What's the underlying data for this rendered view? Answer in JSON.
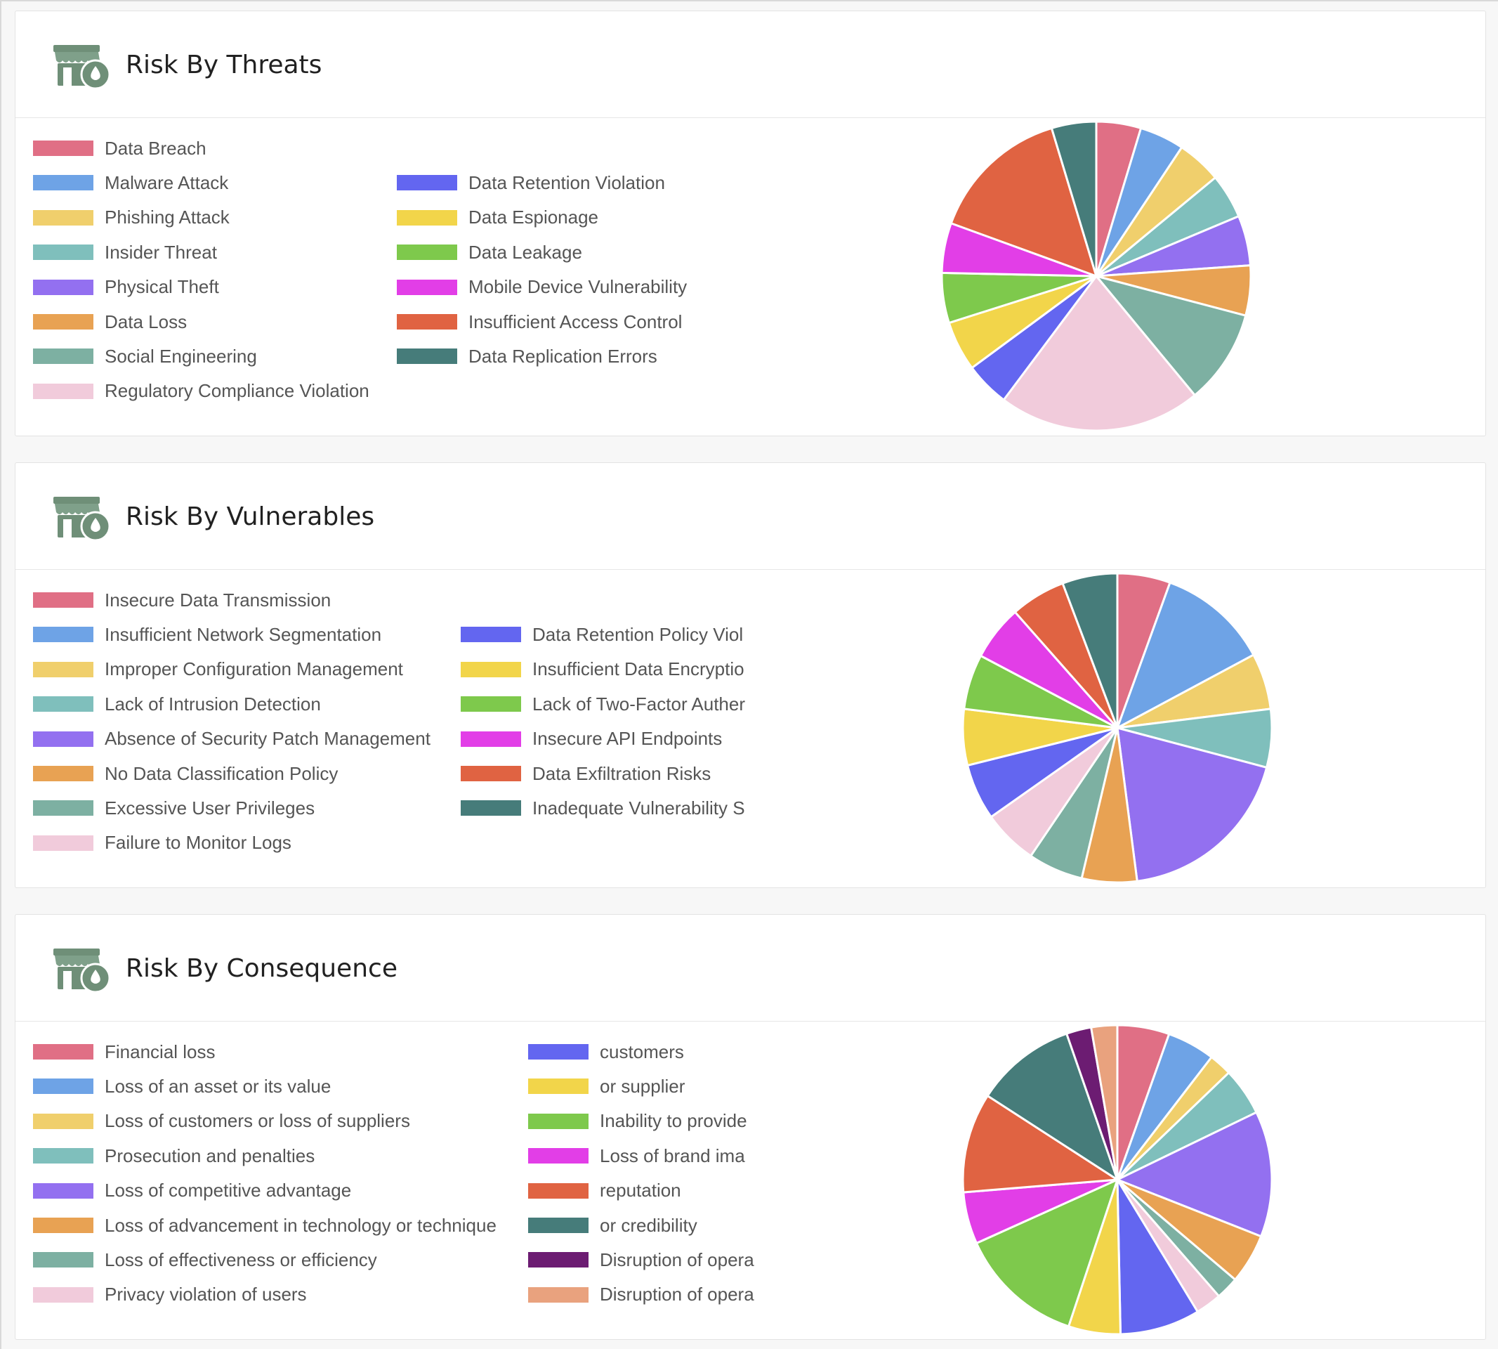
{
  "palette": [
    "#e06f85",
    "#6ea3e6",
    "#f0cf6c",
    "#7fbfbc",
    "#9370f0",
    "#e8a253",
    "#7db0a2",
    "#f1cbdb",
    "#6366f0",
    "#f2d54a",
    "#7ec94c",
    "#e23ee7",
    "#e06342",
    "#467c7a",
    "#6c1c72",
    "#e9a27e"
  ],
  "icon": "store-fire-icon",
  "sections": [
    {
      "title": "Risk By Threats",
      "col2_clip": null,
      "legend": {
        "col1": [
          "Data Breach",
          "Malware Attack",
          "Phishing Attack",
          "Insider Threat",
          "Physical Theft",
          "Data Loss",
          "Social Engineering",
          "Regulatory Compliance Violation"
        ],
        "col2": [
          "Data Retention Violation",
          "Data Espionage",
          "Data Leakage",
          "Mobile Device Vulnerability",
          "Insufficient Access Control",
          "Data Replication Errors"
        ]
      },
      "chart_data": {
        "type": "pie",
        "labels": [
          "Data Breach",
          "Malware Attack",
          "Phishing Attack",
          "Insider Threat",
          "Physical Theft",
          "Data Loss",
          "Social Engineering",
          "Regulatory Compliance Violation",
          "Data Retention Violation",
          "Data Espionage",
          "Data Leakage",
          "Mobile Device Vulnerability",
          "Insufficient Access Control",
          "Data Replication Errors"
        ],
        "values": [
          4.2,
          4.2,
          4.2,
          4.2,
          4.7,
          4.7,
          8.9,
          19.1,
          4.2,
          4.7,
          4.7,
          4.7,
          13.3,
          4.2
        ],
        "colors": [
          "#e06f85",
          "#6ea3e6",
          "#f0cf6c",
          "#7fbfbc",
          "#9370f0",
          "#e8a253",
          "#7db0a2",
          "#f1cbdb",
          "#6366f0",
          "#f2d54a",
          "#7ec94c",
          "#e23ee7",
          "#e06342",
          "#467c7a"
        ]
      }
    },
    {
      "title": "Risk By Vulnerables",
      "col2_clip": "narrow",
      "legend": {
        "col1": [
          "Insecure Data Transmission",
          "Insufficient Network Segmentation",
          "Improper Configuration Management",
          "Lack of Intrusion Detection",
          "Absence of Security Patch Management",
          "No Data Classification Policy",
          "Excessive User Privileges",
          "Failure to Monitor Logs"
        ],
        "col2": [
          "Data Retention Policy Viol",
          "Insufficient Data Encryptio",
          "Lack of Two-Factor Auther",
          "Insecure API Endpoints",
          "Data Exfiltration Risks",
          "Inadequate Vulnerability S"
        ]
      },
      "chart_data": {
        "type": "pie",
        "labels": [
          "Insecure Data Transmission",
          "Insufficient Network Segmentation",
          "Improper Configuration Management",
          "Lack of Intrusion Detection",
          "Absence of Security Patch Management",
          "No Data Classification Policy",
          "Excessive User Privileges",
          "Failure to Monitor Logs",
          "Data Retention Policy Viol",
          "Insufficient Data Encryptio",
          "Lack of Two-Factor Auther",
          "Insecure API Endpoints",
          "Data Exfiltration Risks",
          "Inadequate Vulnerability S"
        ],
        "values": [
          5.0,
          10.5,
          5.3,
          5.5,
          17.0,
          5.2,
          5.2,
          5.2,
          5.3,
          5.3,
          5.2,
          5.2,
          5.2,
          5.2
        ],
        "colors": [
          "#e06f85",
          "#6ea3e6",
          "#f0cf6c",
          "#7fbfbc",
          "#9370f0",
          "#e8a253",
          "#7db0a2",
          "#f1cbdb",
          "#6366f0",
          "#f2d54a",
          "#7ec94c",
          "#e23ee7",
          "#e06342",
          "#467c7a"
        ]
      }
    },
    {
      "title": "Risk By Consequence",
      "col2_clip": "narrow",
      "legend": {
        "col1": [
          "Financial loss",
          "Loss of an asset or its value",
          "Loss of customers or loss of suppliers",
          "Prosecution and penalties",
          "Loss of competitive advantage",
          "Loss of advancement in technology or technique",
          "Loss of effectiveness or efficiency",
          "Privacy violation of users"
        ],
        "col2": [
          " customers",
          " or supplier",
          "Inability to provide",
          "Loss of brand ima",
          " reputation",
          " or credibility",
          "Disruption of opera",
          "Disruption of opera"
        ]
      },
      "chart_data": {
        "type": "pie",
        "labels": [
          "Financial loss",
          "Loss of an asset or its value",
          "Loss of customers or loss of suppliers",
          "Prosecution and penalties",
          "Loss of competitive advantage",
          "Loss of advancement in technology or technique",
          "Loss of effectiveness or efficiency",
          "Privacy violation of users",
          " customers",
          " or supplier",
          "Inability to provide",
          "Loss of brand ima",
          " reputation",
          " or credibility",
          "Disruption of opera",
          "Disruption of opera"
        ],
        "values": [
          5.0,
          4.6,
          2.2,
          4.6,
          12.1,
          4.8,
          2.2,
          2.5,
          7.7,
          5.0,
          12.1,
          5.0,
          9.6,
          9.7,
          2.4,
          2.5
        ],
        "colors": [
          "#e06f85",
          "#6ea3e6",
          "#f0cf6c",
          "#7fbfbc",
          "#9370f0",
          "#e8a253",
          "#7db0a2",
          "#f1cbdb",
          "#6366f0",
          "#f2d54a",
          "#7ec94c",
          "#e23ee7",
          "#e06342",
          "#467c7a",
          "#6c1c72",
          "#e9a27e"
        ]
      }
    }
  ]
}
